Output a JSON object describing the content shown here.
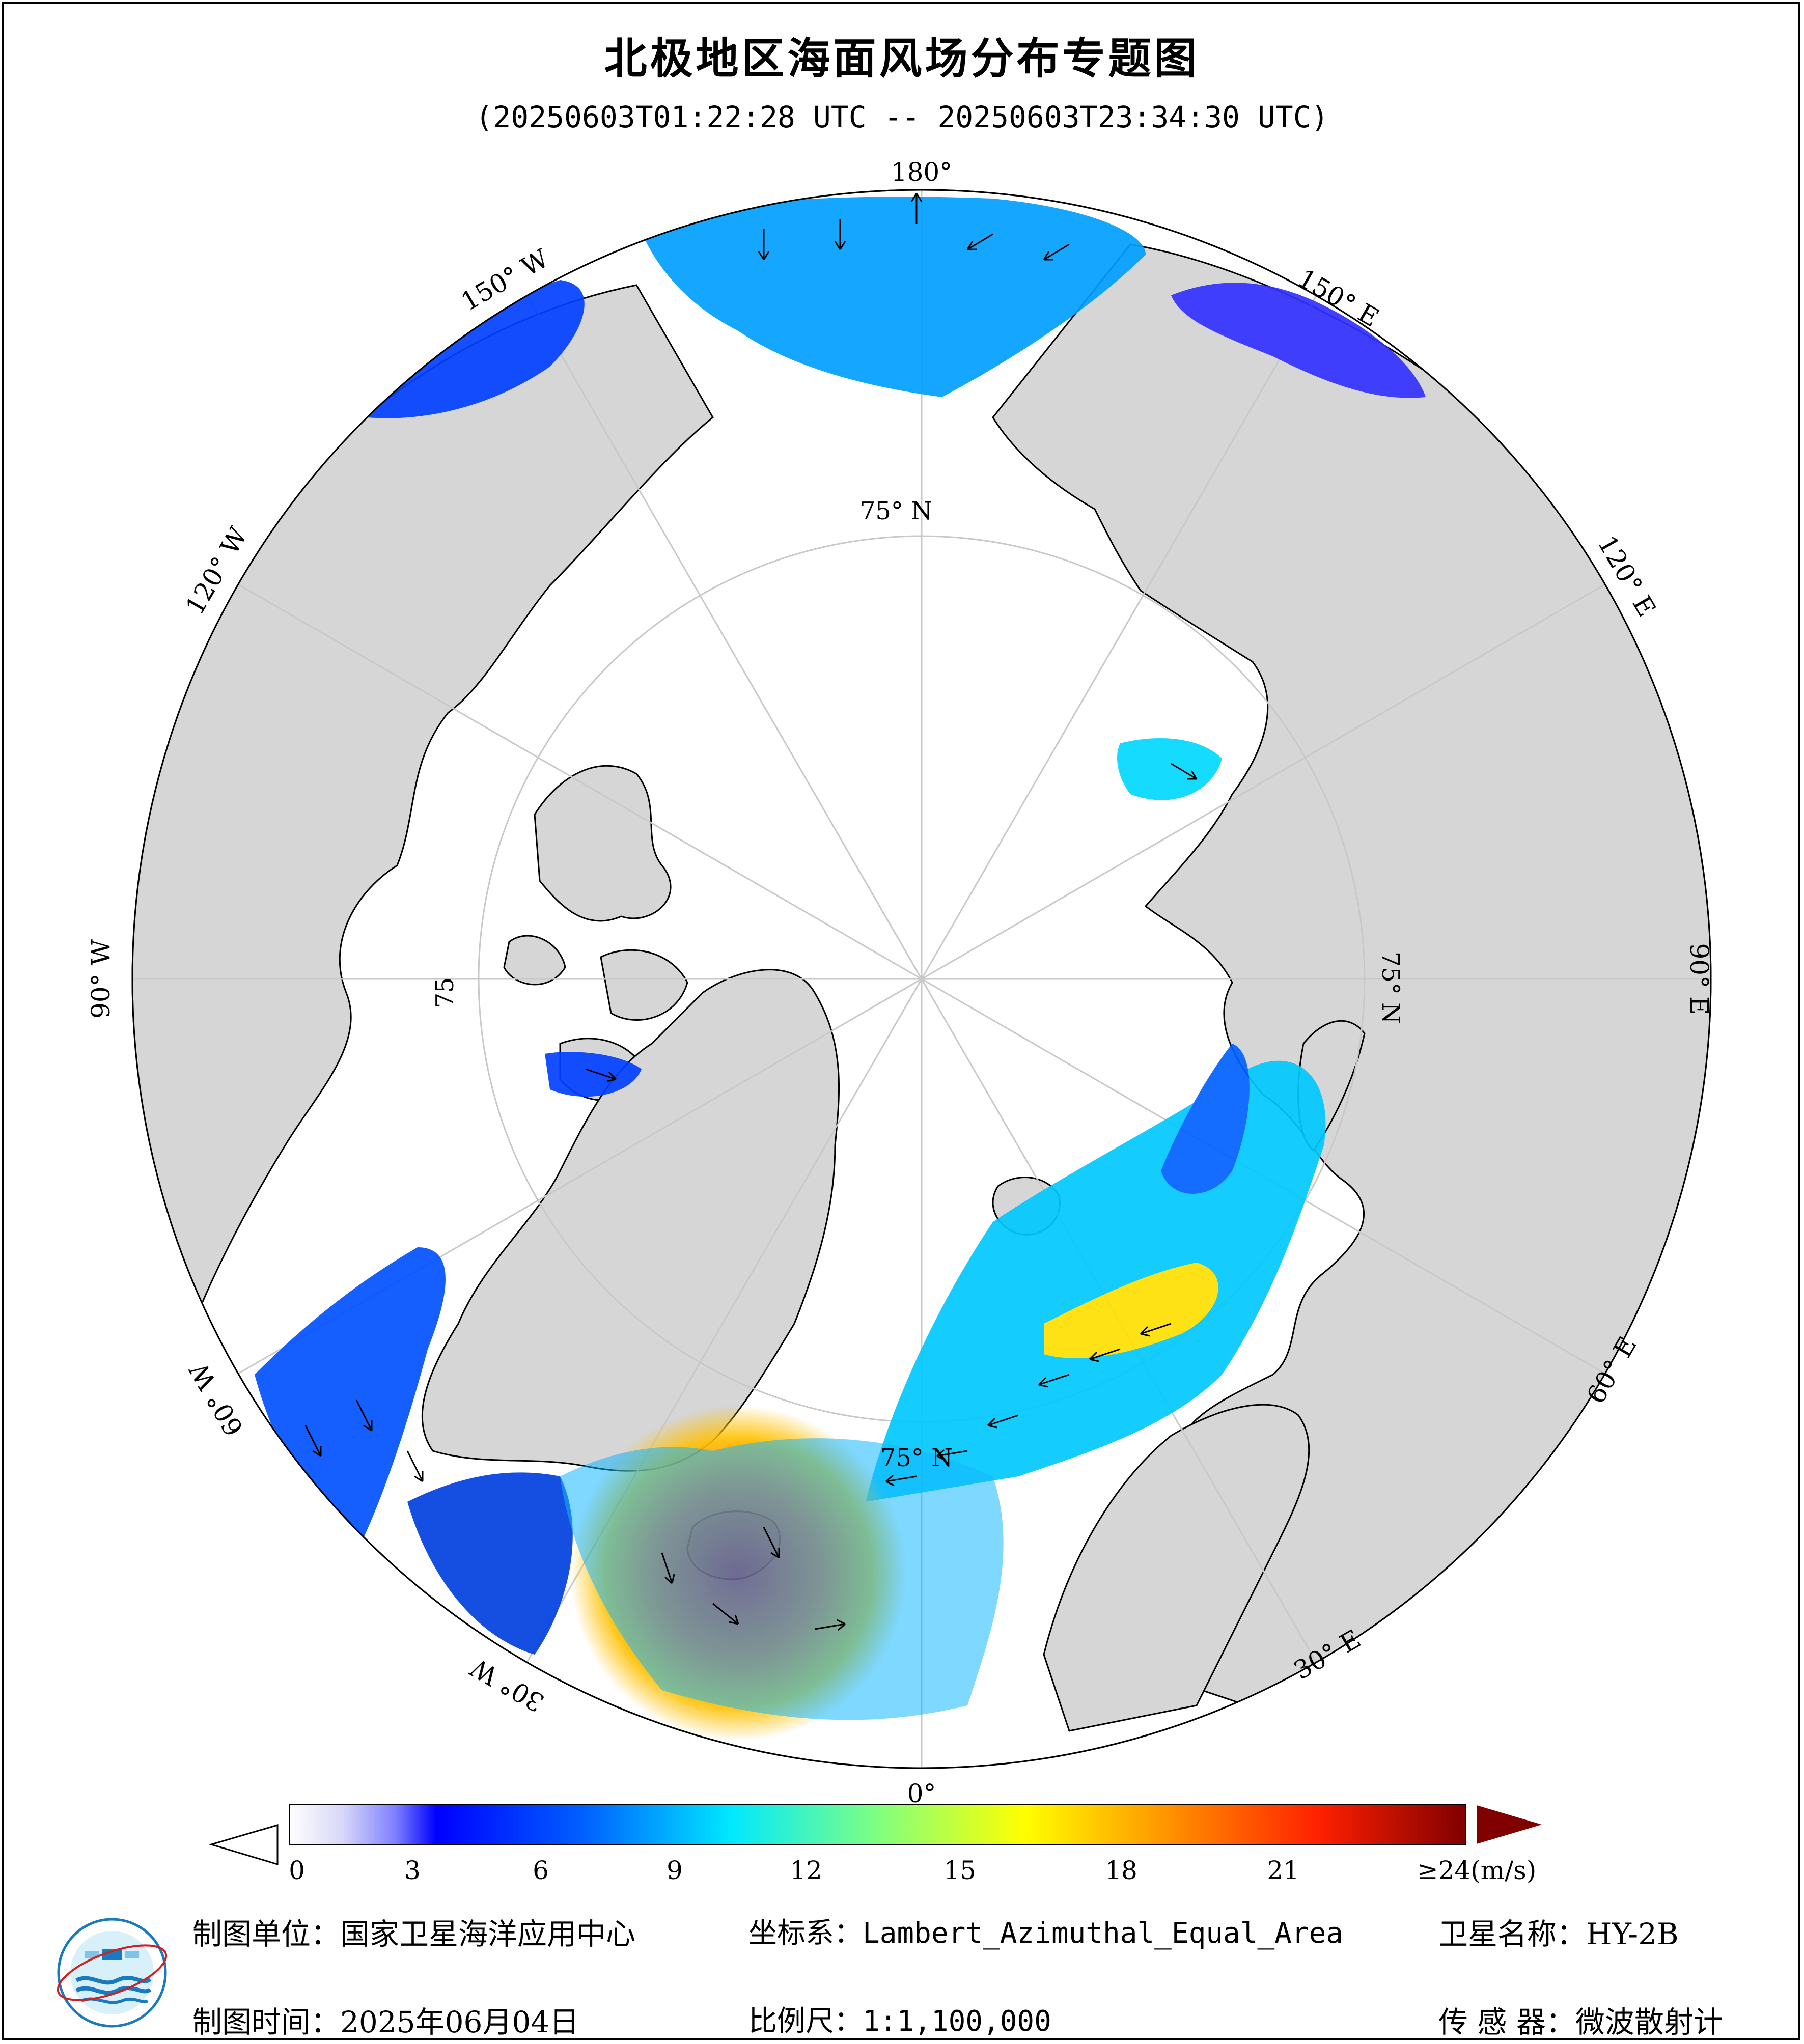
{
  "title": "北极地区海面风场分布专题图",
  "time_range": "(20250603T01:22:28 UTC -- 20250603T23:34:30 UTC)",
  "longitude_labels": {
    "lon_180": "180°",
    "lon_150w": "150° W",
    "lon_120w": "120° W",
    "lon_90w": "90° W",
    "lon_60w": "60° W",
    "lon_30w": "30° W",
    "lon_0": "0°",
    "lon_30e": "30° E",
    "lon_60e": "60° E",
    "lon_90e": "90° E",
    "lon_120e": "120° E",
    "lon_150e": "150° E"
  },
  "latitude_labels": {
    "lat_75_top": "75° N",
    "lat_75_left": "75",
    "lat_75_right": "75° N",
    "lat_75_bottom": "75° N"
  },
  "colorbar": {
    "unit_label": "≥24(m/s)",
    "ticks": [
      "0",
      "3",
      "6",
      "9",
      "12",
      "15",
      "18",
      "21"
    ],
    "tick_values": [
      0,
      3,
      6,
      9,
      12,
      15,
      18,
      21
    ],
    "max_value": 24,
    "colors": [
      "#ffffff",
      "#d8d8f8",
      "#b0b0f0",
      "#7070ff",
      "#3a3aff",
      "#0000ff",
      "#0050ff",
      "#00a0ff",
      "#00e8ff",
      "#40ffd0",
      "#a0ff70",
      "#ffff00",
      "#ffc000",
      "#ff8000",
      "#ff3000",
      "#e00000",
      "#b00000",
      "#800000"
    ],
    "over_color": "#800000",
    "under_color": "#ffffff"
  },
  "footer": {
    "producer": "制图单位：国家卫星海洋应用中心",
    "date": "制图时间：2025年06月04日",
    "crs": "坐标系：Lambert_Azimuthal_Equal_Area",
    "scale": "比例尺：1:1,100,000",
    "satellite": "卫星名称：HY-2B",
    "sensor": "传 感 器：微波散射计"
  },
  "map_colors": {
    "ocean": "#ffffff",
    "land": "#d6d6d6",
    "coastline": "#000000",
    "graticule": "#c8c8c8",
    "vector": "#000000"
  }
}
